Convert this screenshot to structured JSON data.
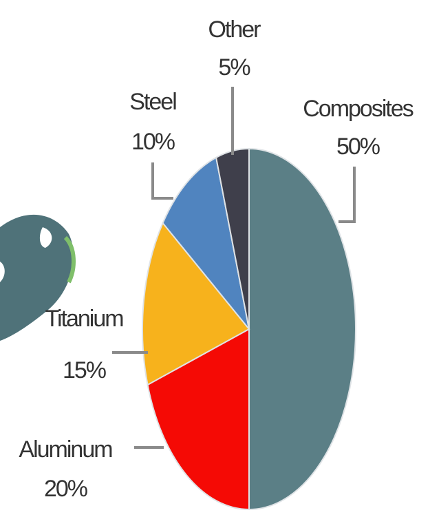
{
  "chart_data": {
    "type": "pie",
    "categories": [
      "Composites",
      "Aluminum",
      "Titanium",
      "Steel",
      "Other"
    ],
    "values": [
      50,
      20,
      15,
      10,
      5
    ],
    "value_labels": [
      "50%",
      "20%",
      "15%",
      "10%",
      "5%"
    ],
    "colors": [
      "#5b7f86",
      "#f50a05",
      "#f7b21c",
      "#5084bf",
      "#3f3f4b"
    ]
  }
}
